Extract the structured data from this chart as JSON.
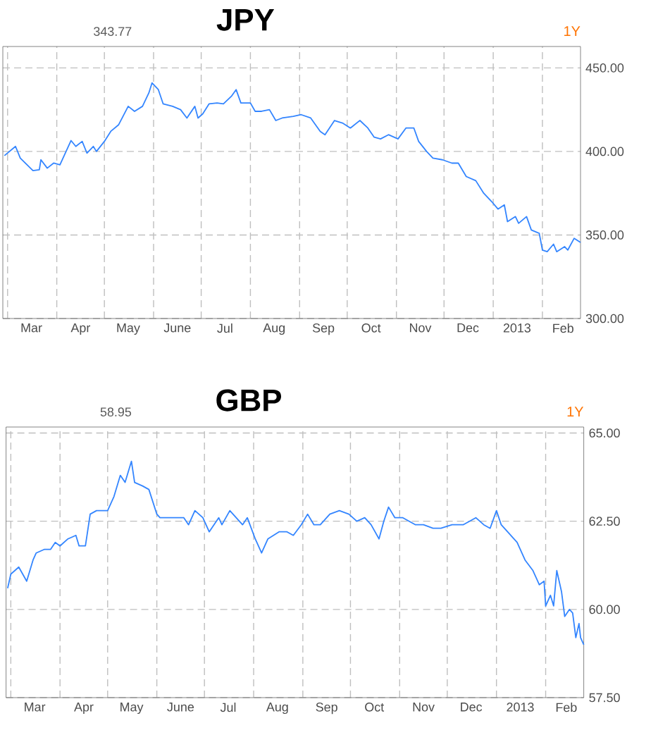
{
  "chart_data": [
    {
      "type": "line",
      "title": "JPY",
      "annotations": [
        "343.77",
        "1Y"
      ],
      "xlim": [
        "2012-02-27",
        "2013-02-25"
      ],
      "ylim": [
        300,
        462.8
      ],
      "xticks": [
        {
          "value": "2012-03-01",
          "label": null
        },
        {
          "value": "2012-03-16",
          "label": "Mar"
        },
        {
          "value": "2012-04-01",
          "label": null
        },
        {
          "value": "2012-04-16",
          "label": "Apr"
        },
        {
          "value": "2012-05-01",
          "label": null
        },
        {
          "value": "2012-05-16",
          "label": "May"
        },
        {
          "value": "2012-06-01",
          "label": null
        },
        {
          "value": "2012-06-16",
          "label": "June"
        },
        {
          "value": "2012-07-01",
          "label": null
        },
        {
          "value": "2012-07-16",
          "label": "Jul"
        },
        {
          "value": "2012-08-01",
          "label": null
        },
        {
          "value": "2012-08-16",
          "label": "Aug"
        },
        {
          "value": "2012-09-01",
          "label": null
        },
        {
          "value": "2012-09-16",
          "label": "Sep"
        },
        {
          "value": "2012-10-01",
          "label": null
        },
        {
          "value": "2012-10-16",
          "label": "Oct"
        },
        {
          "value": "2012-11-01",
          "label": null
        },
        {
          "value": "2012-11-16",
          "label": "Nov"
        },
        {
          "value": "2012-12-01",
          "label": null
        },
        {
          "value": "2012-12-16",
          "label": "Dec"
        },
        {
          "value": "2013-01-01",
          "label": null
        },
        {
          "value": "2013-01-16",
          "label": "2013"
        },
        {
          "value": "2013-02-01",
          "label": null
        },
        {
          "value": "2013-02-14",
          "label": "Feb"
        }
      ],
      "yticks": [
        {
          "value": 300,
          "label": "300.00"
        },
        {
          "value": 350,
          "label": "350.00"
        },
        {
          "value": 400,
          "label": "400.00"
        },
        {
          "value": 450,
          "label": "450.00"
        }
      ],
      "grid": true,
      "series": [
        {
          "color": "#3385ff",
          "x": [
            "2012-02-28",
            "2012-03-06",
            "2012-03-09",
            "2012-03-17",
            "2012-03-21",
            "2012-03-22",
            "2012-03-26",
            "2012-03-30",
            "2012-04-03",
            "2012-04-10",
            "2012-04-13",
            "2012-04-17",
            "2012-04-20",
            "2012-04-24",
            "2012-04-26",
            "2012-05-01",
            "2012-05-05",
            "2012-05-10",
            "2012-05-16",
            "2012-05-20",
            "2012-05-25",
            "2012-05-29",
            "2012-05-31",
            "2012-06-04",
            "2012-06-07",
            "2012-06-13",
            "2012-06-18",
            "2012-06-22",
            "2012-06-27",
            "2012-06-29",
            "2012-07-02",
            "2012-07-06",
            "2012-07-11",
            "2012-07-15",
            "2012-07-20",
            "2012-07-23",
            "2012-07-26",
            "2012-08-01",
            "2012-08-04",
            "2012-08-08",
            "2012-08-13",
            "2012-08-17",
            "2012-08-21",
            "2012-08-28",
            "2012-09-02",
            "2012-09-08",
            "2012-09-14",
            "2012-09-17",
            "2012-09-23",
            "2012-09-28",
            "2012-10-03",
            "2012-10-09",
            "2012-10-14",
            "2012-10-18",
            "2012-10-22",
            "2012-10-27",
            "2012-11-02",
            "2012-11-07",
            "2012-11-12",
            "2012-11-15",
            "2012-11-20",
            "2012-11-24",
            "2012-11-30",
            "2012-12-06",
            "2012-12-10",
            "2012-12-15",
            "2012-12-21",
            "2012-12-26",
            "2012-12-31",
            "2013-01-04",
            "2013-01-08",
            "2013-01-10",
            "2013-01-15",
            "2013-01-17",
            "2013-01-22",
            "2013-01-25",
            "2013-01-30",
            "2013-02-01",
            "2013-02-04",
            "2013-02-08",
            "2013-02-10",
            "2013-02-15",
            "2013-02-17",
            "2013-02-21",
            "2013-02-25"
          ],
          "values": [
            397.5,
            403,
            396,
            388.5,
            389,
            395,
            390,
            393,
            392,
            406.5,
            403,
            406,
            399,
            403,
            400,
            406,
            412,
            416,
            427,
            424,
            427,
            435,
            441,
            437,
            428.5,
            427,
            425,
            420,
            427,
            420,
            422.5,
            428.5,
            429,
            428.5,
            433,
            437,
            429,
            429,
            424,
            424,
            425,
            418.5,
            420,
            421,
            422,
            420,
            412,
            410,
            418.5,
            417,
            414,
            418.5,
            414,
            408.5,
            407.5,
            410,
            407.5,
            414,
            414,
            406,
            400,
            396,
            395,
            393,
            393,
            385,
            382.5,
            375,
            370,
            365.5,
            368,
            358,
            361,
            357,
            361,
            353,
            351,
            341,
            340,
            344.5,
            340,
            343,
            341,
            348,
            345.5
          ]
        }
      ]
    },
    {
      "type": "line",
      "title": "GBP",
      "annotations": [
        "58.95",
        "1Y"
      ],
      "xlim": [
        "2012-02-27",
        "2013-02-25"
      ],
      "ylim": [
        57.5,
        65.17
      ],
      "xticks": [
        {
          "value": "2012-03-01",
          "label": null
        },
        {
          "value": "2012-03-16",
          "label": "Mar"
        },
        {
          "value": "2012-04-01",
          "label": null
        },
        {
          "value": "2012-04-16",
          "label": "Apr"
        },
        {
          "value": "2012-05-01",
          "label": null
        },
        {
          "value": "2012-05-16",
          "label": "May"
        },
        {
          "value": "2012-06-01",
          "label": null
        },
        {
          "value": "2012-06-16",
          "label": "June"
        },
        {
          "value": "2012-07-01",
          "label": null
        },
        {
          "value": "2012-07-16",
          "label": "Jul"
        },
        {
          "value": "2012-08-01",
          "label": null
        },
        {
          "value": "2012-08-16",
          "label": "Aug"
        },
        {
          "value": "2012-09-01",
          "label": null
        },
        {
          "value": "2012-09-16",
          "label": "Sep"
        },
        {
          "value": "2012-10-01",
          "label": null
        },
        {
          "value": "2012-10-16",
          "label": "Oct"
        },
        {
          "value": "2012-11-01",
          "label": null
        },
        {
          "value": "2012-11-16",
          "label": "Nov"
        },
        {
          "value": "2012-12-01",
          "label": null
        },
        {
          "value": "2012-12-16",
          "label": "Dec"
        },
        {
          "value": "2013-01-01",
          "label": null
        },
        {
          "value": "2013-01-16",
          "label": "2013"
        },
        {
          "value": "2013-02-01",
          "label": null
        },
        {
          "value": "2013-02-14",
          "label": "Feb"
        }
      ],
      "yticks": [
        {
          "value": 57.5,
          "label": "57.50"
        },
        {
          "value": 60,
          "label": "60.00"
        },
        {
          "value": 62.5,
          "label": "62.50"
        },
        {
          "value": 65,
          "label": "65.00"
        }
      ],
      "grid": true,
      "series": [
        {
          "color": "#3385ff",
          "x": [
            "2012-02-28",
            "2012-03-01",
            "2012-03-06",
            "2012-03-11",
            "2012-03-15",
            "2012-03-17",
            "2012-03-22",
            "2012-03-26",
            "2012-03-29",
            "2012-04-01",
            "2012-04-06",
            "2012-04-11",
            "2012-04-13",
            "2012-04-17",
            "2012-04-20",
            "2012-04-24",
            "2012-05-01",
            "2012-05-05",
            "2012-05-09",
            "2012-05-12",
            "2012-05-16",
            "2012-05-18",
            "2012-05-23",
            "2012-05-27",
            "2012-06-01",
            "2012-06-03",
            "2012-06-08",
            "2012-06-14",
            "2012-06-18",
            "2012-06-21",
            "2012-06-25",
            "2012-06-30",
            "2012-07-04",
            "2012-07-10",
            "2012-07-12",
            "2012-07-17",
            "2012-07-21",
            "2012-07-25",
            "2012-07-28",
            "2012-08-02",
            "2012-08-06",
            "2012-08-10",
            "2012-08-17",
            "2012-08-22",
            "2012-08-26",
            "2012-08-31",
            "2012-09-04",
            "2012-09-08",
            "2012-09-12",
            "2012-09-18",
            "2012-09-24",
            "2012-09-30",
            "2012-10-05",
            "2012-10-10",
            "2012-10-14",
            "2012-10-19",
            "2012-10-22",
            "2012-10-25",
            "2012-10-29",
            "2012-11-03",
            "2012-11-07",
            "2012-11-11",
            "2012-11-16",
            "2012-11-22",
            "2012-11-27",
            "2012-12-04",
            "2012-12-11",
            "2012-12-19",
            "2012-12-24",
            "2012-12-28",
            "2013-01-01",
            "2013-01-04",
            "2013-01-10",
            "2013-01-14",
            "2013-01-17",
            "2013-01-19",
            "2013-01-24",
            "2013-01-28",
            "2013-01-31",
            "2013-02-01",
            "2013-02-04",
            "2013-02-06",
            "2013-02-08",
            "2013-02-11",
            "2013-02-13",
            "2013-02-16",
            "2013-02-18",
            "2013-02-20",
            "2013-02-22",
            "2013-02-23",
            "2013-02-25"
          ],
          "values": [
            60.6,
            61.0,
            61.2,
            60.8,
            61.4,
            61.6,
            61.7,
            61.7,
            61.9,
            61.8,
            62.0,
            62.1,
            61.8,
            61.8,
            62.7,
            62.8,
            62.8,
            63.2,
            63.8,
            63.6,
            64.2,
            63.6,
            63.5,
            63.4,
            62.7,
            62.6,
            62.6,
            62.6,
            62.6,
            62.4,
            62.8,
            62.6,
            62.2,
            62.6,
            62.4,
            62.8,
            62.6,
            62.4,
            62.6,
            62.0,
            61.6,
            62.0,
            62.2,
            62.2,
            62.1,
            62.4,
            62.7,
            62.4,
            62.4,
            62.7,
            62.8,
            62.7,
            62.5,
            62.6,
            62.4,
            62.0,
            62.5,
            62.9,
            62.6,
            62.6,
            62.5,
            62.4,
            62.4,
            62.3,
            62.3,
            62.4,
            62.4,
            62.6,
            62.4,
            62.3,
            62.8,
            62.4,
            62.1,
            61.9,
            61.6,
            61.4,
            61.1,
            60.7,
            60.8,
            60.1,
            60.4,
            60.1,
            61.1,
            60.5,
            59.8,
            60.0,
            59.9,
            59.2,
            59.6,
            59.2,
            59.0
          ]
        }
      ]
    }
  ]
}
